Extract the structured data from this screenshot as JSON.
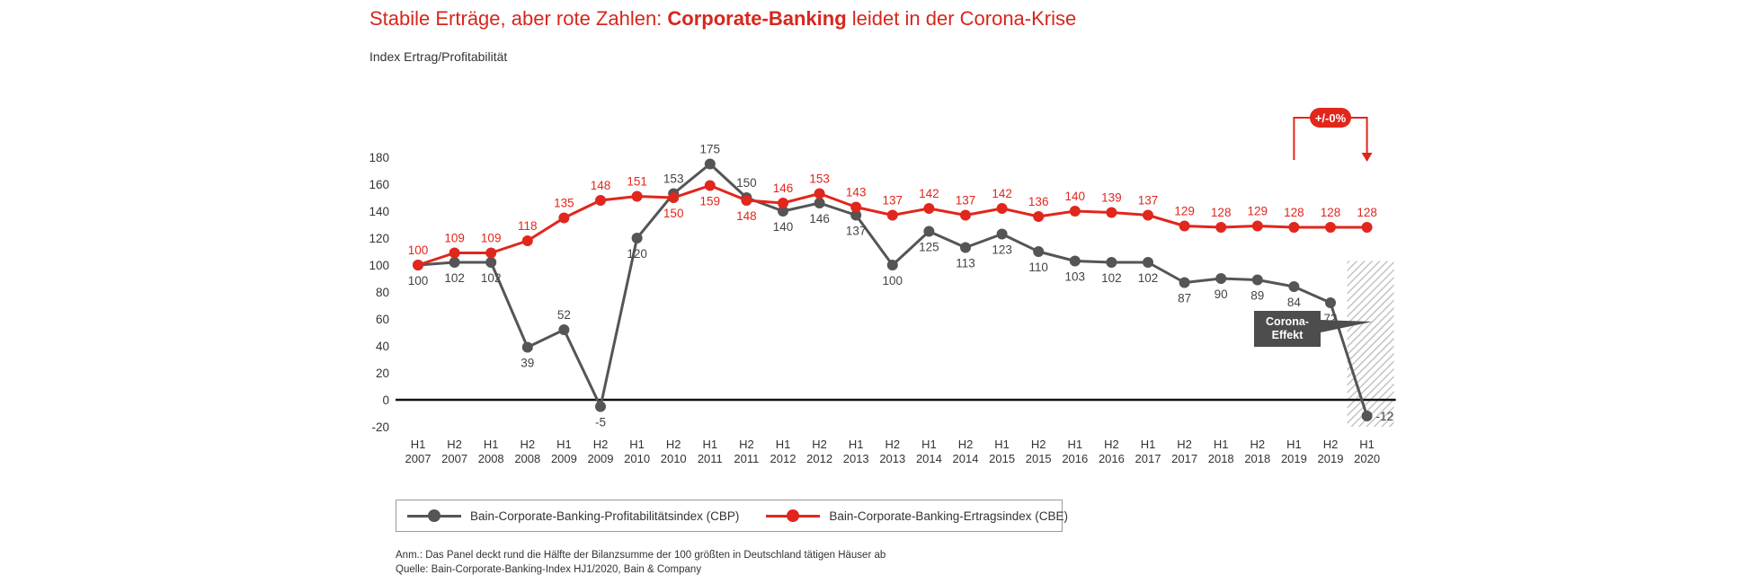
{
  "title": {
    "prefix": "Stabile Erträge, aber rote Zahlen: ",
    "bold": "Corporate-Banking",
    "suffix": " leidet in der Corona-Krise"
  },
  "colors": {
    "profitability": "#555555",
    "revenue": "#e1261c",
    "title": "#d7261e"
  },
  "chart_data": {
    "type": "line",
    "ylabel": "Index Ertrag/Profitabilität",
    "ylim": [
      -20,
      180
    ],
    "yticks": [
      -20,
      0,
      20,
      40,
      60,
      80,
      100,
      120,
      140,
      160,
      180
    ],
    "grid": false,
    "categories": [
      "H1 2007",
      "H2 2007",
      "H1 2008",
      "H2 2008",
      "H1 2009",
      "H2 2009",
      "H1 2010",
      "H2 2010",
      "H1 2011",
      "H2 2011",
      "H1 2012",
      "H2 2012",
      "H1 2013",
      "H2 2013",
      "H1 2014",
      "H2 2014",
      "H1 2015",
      "H2 2015",
      "H1 2016",
      "H2 2016",
      "H1 2017",
      "H2 2017",
      "H1 2018",
      "H2 2018",
      "H1 2019",
      "H2 2019",
      "H1 2020"
    ],
    "series": [
      {
        "name": "Bain-Corporate-Banking-Profitabilitätsindex (CBP)",
        "values": [
          100,
          102,
          102,
          39,
          52,
          -5,
          120,
          153,
          175,
          150,
          140,
          146,
          137,
          100,
          125,
          113,
          123,
          110,
          103,
          102,
          102,
          87,
          90,
          89,
          84,
          72,
          -12
        ]
      },
      {
        "name": "Bain-Corporate-Banking-Ertragsindex (CBE)",
        "values": [
          100,
          109,
          109,
          118,
          135,
          148,
          151,
          150,
          159,
          148,
          146,
          153,
          143,
          137,
          142,
          137,
          142,
          136,
          140,
          139,
          137,
          129,
          128,
          129,
          128,
          128,
          128
        ]
      }
    ],
    "legend_position": "bottom",
    "annotations": [
      "+/-0%",
      "Corona-\nEffekt"
    ]
  },
  "notes": [
    "Anm.: Das Panel deckt rund die Hälfte der Bilanzsumme der 100 größten in Deutschland tätigen Häuser ab",
    "Quelle: Bain-Corporate-Banking-Index HJ1/2020, Bain & Company"
  ]
}
